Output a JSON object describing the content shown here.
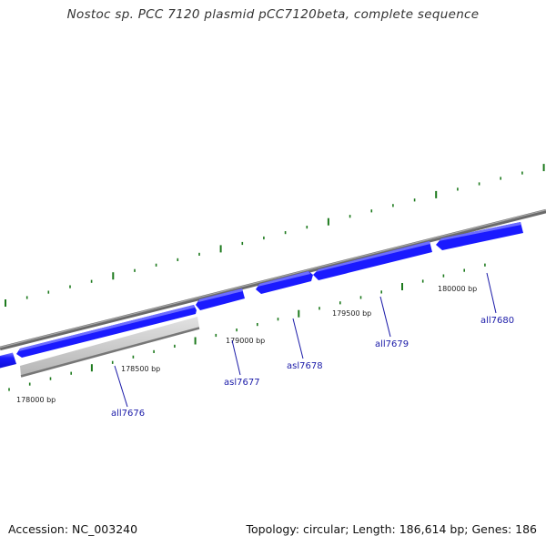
{
  "title": "Nostoc sp. PCC 7120 plasmid pCC7120beta, complete sequence",
  "footer": {
    "accession": "Accession: NC_003240",
    "topology": "Topology: circular; Length: 186,614 bp; Genes: 186"
  },
  "colors": {
    "gene_forward": "#1a1aff",
    "gene_forward_light": "#6d6dff",
    "gene_highlight": "#c4c4c4",
    "backbone": "#8a8a8a",
    "ticks": "#1d7a1d",
    "gene_label": "#1a1aa8"
  },
  "bp_labels": [
    "178000 bp",
    "178500 bp",
    "179000 bp",
    "179500 bp",
    "180000 bp"
  ],
  "gene_labels": [
    "all7676",
    "asl7677",
    "asl7678",
    "all7679",
    "all7680"
  ]
}
